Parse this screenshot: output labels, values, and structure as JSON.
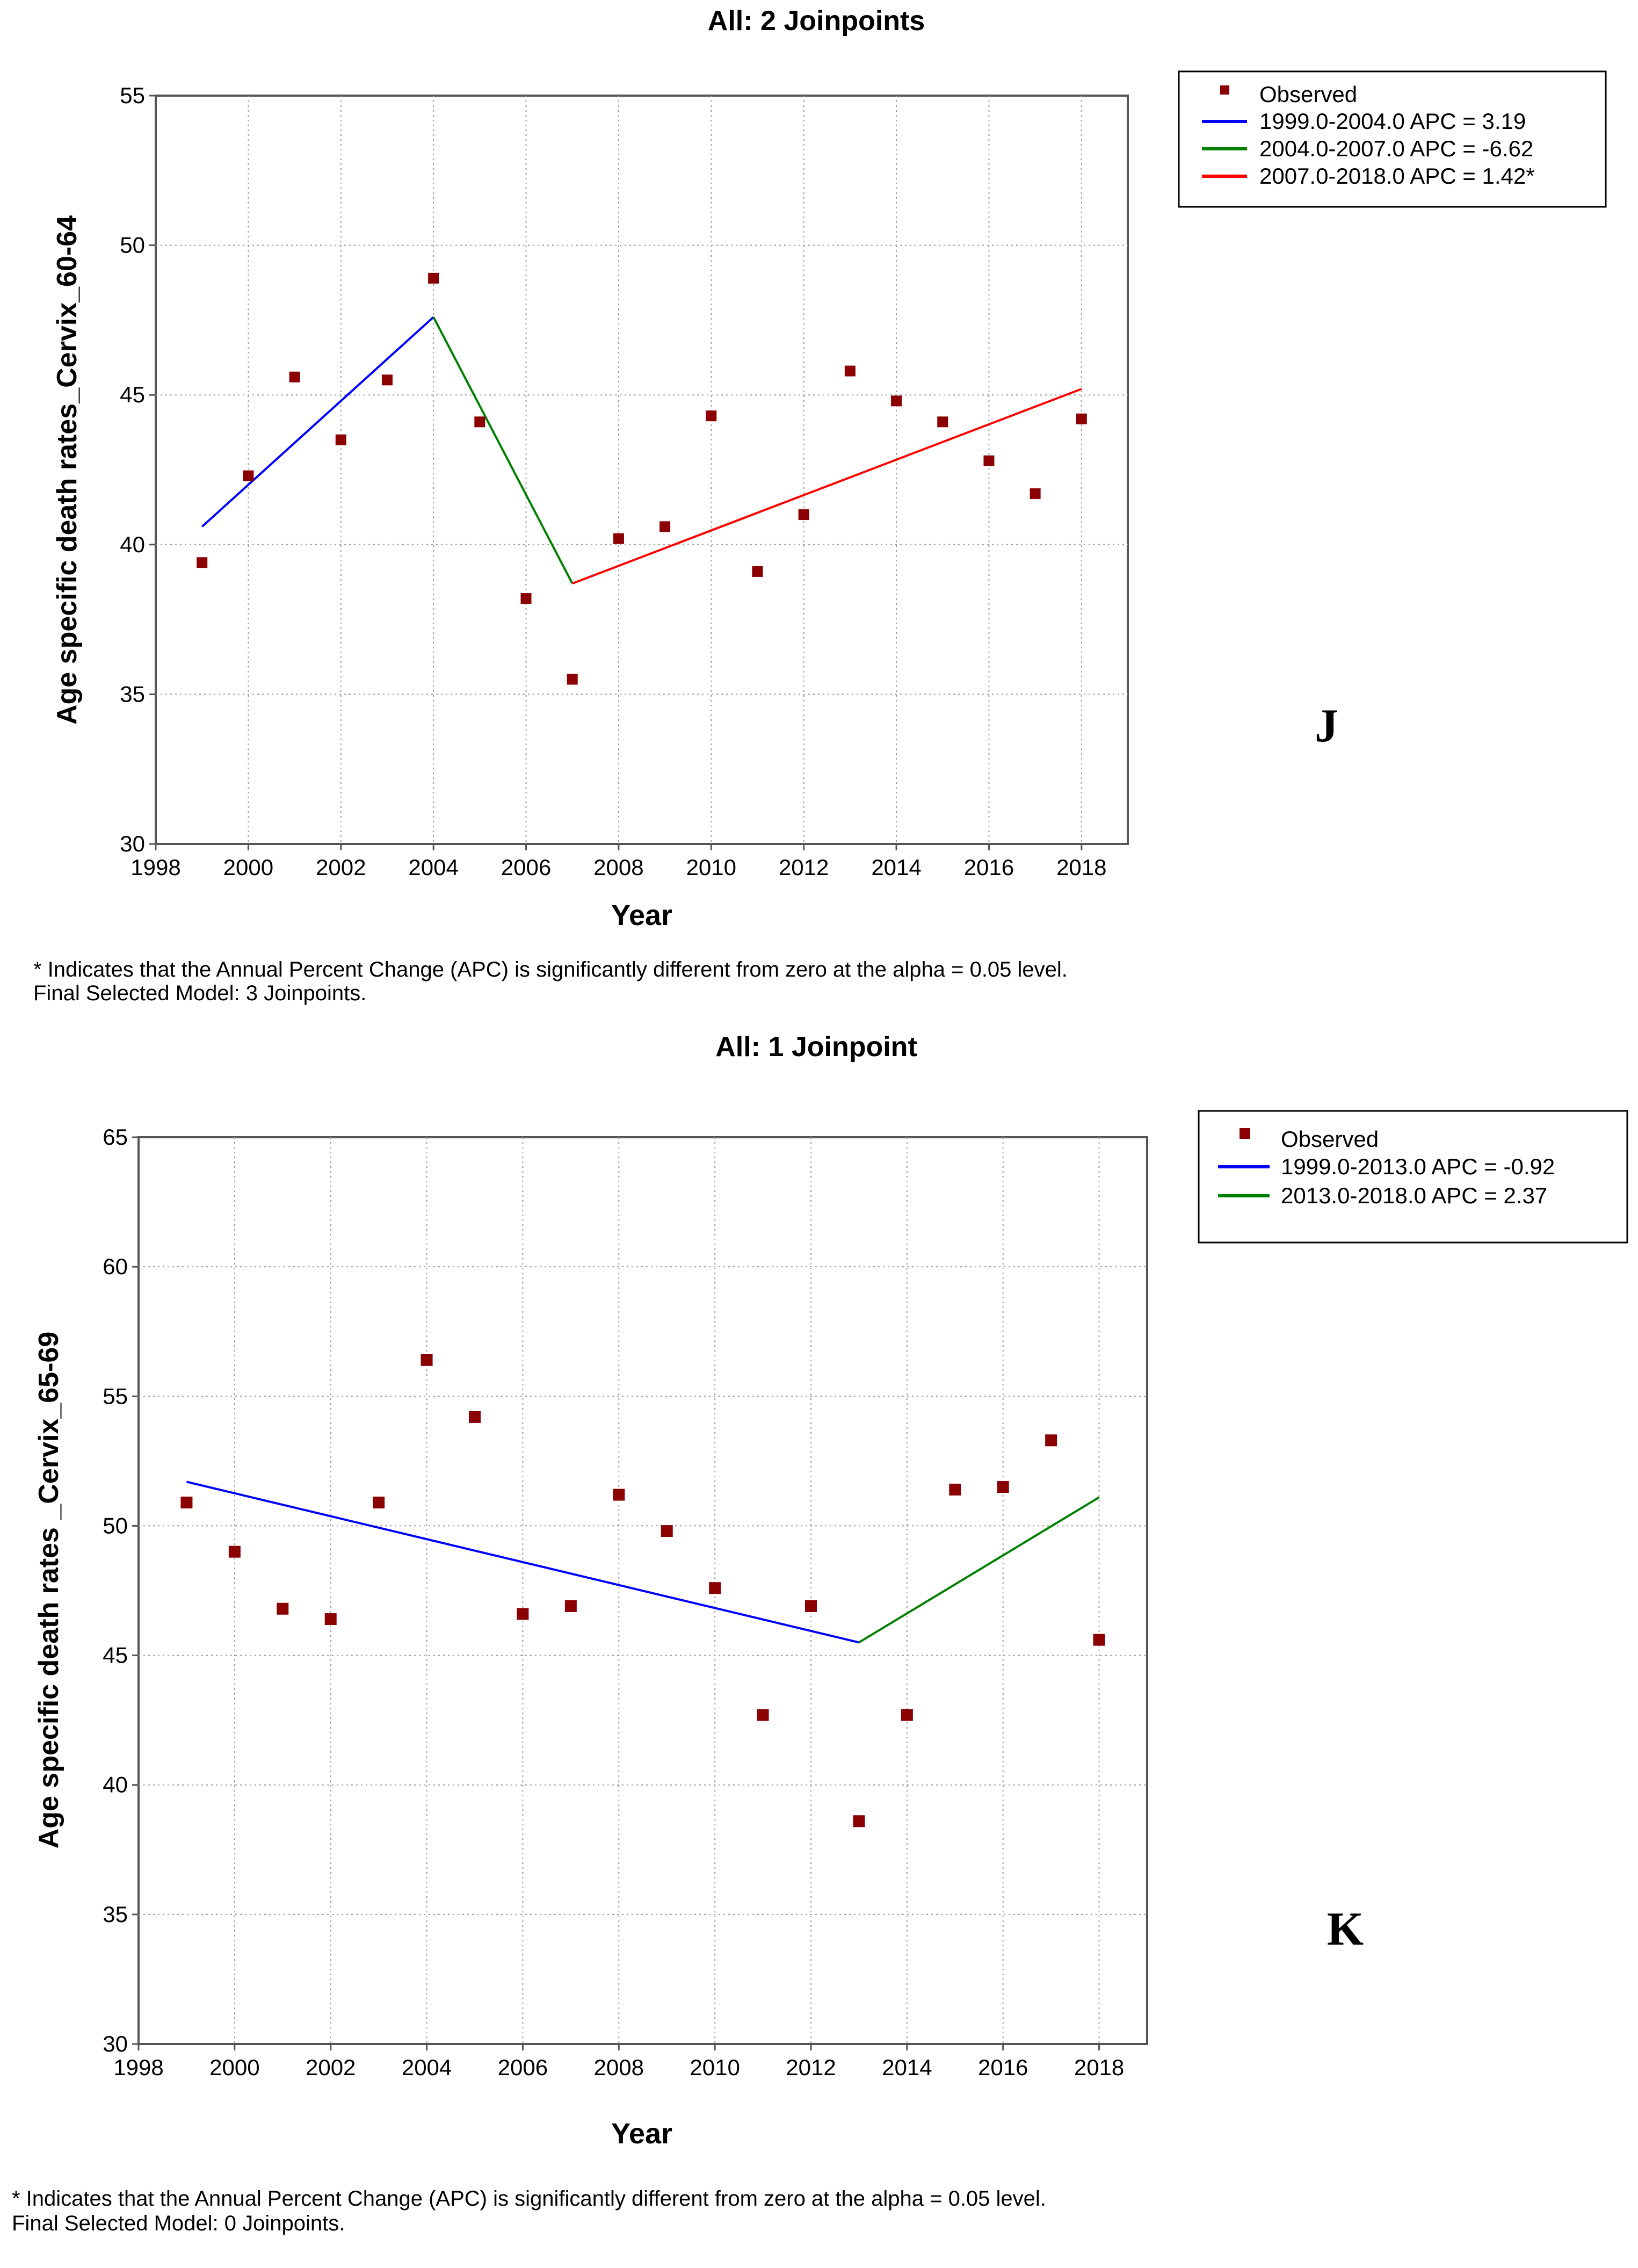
{
  "chart_data": [
    {
      "type": "line",
      "title": "All: 2 Joinpoints",
      "xlabel": "Year",
      "ylabel": "Age specific death rates_Cervix_60-64",
      "xlim": [
        1998,
        2019
      ],
      "ylim": [
        30,
        55
      ],
      "x_ticks": [
        "1998",
        "2000",
        "2002",
        "2004",
        "2006",
        "2008",
        "2010",
        "2012",
        "2014",
        "2016",
        "2018"
      ],
      "y_ticks": [
        "30",
        "35",
        "40",
        "45",
        "50",
        "55"
      ],
      "grid": true,
      "legend_position": "top-right, outside plot",
      "observed": {
        "name": "Observed",
        "color": "#8B0000",
        "x": [
          1999,
          2000,
          2001,
          2002,
          2003,
          2004,
          2005,
          2006,
          2007,
          2008,
          2009,
          2010,
          2011,
          2012,
          2013,
          2014,
          2015,
          2016,
          2017,
          2018
        ],
        "y": [
          39.4,
          42.3,
          45.6,
          43.5,
          45.5,
          48.9,
          44.1,
          38.2,
          35.5,
          40.2,
          40.6,
          44.3,
          39.1,
          41.0,
          45.8,
          44.8,
          44.1,
          42.8,
          41.7,
          44.2
        ]
      },
      "series": [
        {
          "name": "1999.0-2004.0 APC  =  3.19",
          "color": "#0000FF",
          "x": [
            1999,
            2004
          ],
          "y": [
            40.6,
            47.6
          ]
        },
        {
          "name": "2004.0-2007.0 APC  = -6.62",
          "color": "#008000",
          "x": [
            2004,
            2007
          ],
          "y": [
            47.6,
            38.7
          ]
        },
        {
          "name": "2007.0-2018.0 APC  =  1.42*",
          "color": "#FF0000",
          "x": [
            2007,
            2018
          ],
          "y": [
            38.7,
            45.2
          ]
        }
      ],
      "panel_letter": "J",
      "footnote_1": "* Indicates that the Annual Percent Change (APC) is significantly different from zero at the alpha = 0.05 level.",
      "footnote_2": "Final Selected Model: 3 Joinpoints."
    },
    {
      "type": "line",
      "title": "All: 1 Joinpoint",
      "xlabel": "Year",
      "ylabel": "Age specific death rates _Cervix_65-69",
      "xlim": [
        1998,
        2019
      ],
      "ylim": [
        30,
        65
      ],
      "x_ticks": [
        "1998",
        "2000",
        "2002",
        "2004",
        "2006",
        "2008",
        "2010",
        "2012",
        "2014",
        "2016",
        "2018"
      ],
      "y_ticks": [
        "30",
        "35",
        "40",
        "45",
        "50",
        "55",
        "60",
        "65"
      ],
      "grid": true,
      "legend_position": "top-right, outside plot",
      "observed": {
        "name": "Observed",
        "color": "#8B0000",
        "x": [
          1999,
          2000,
          2001,
          2002,
          2003,
          2004,
          2005,
          2006,
          2007,
          2008,
          2009,
          2010,
          2011,
          2012,
          2013,
          2014,
          2015,
          2016,
          2017,
          2018
        ],
        "y": [
          50.9,
          49.0,
          46.8,
          46.4,
          50.9,
          56.4,
          54.2,
          46.6,
          46.9,
          51.2,
          49.8,
          47.6,
          42.7,
          46.9,
          38.6,
          42.7,
          51.4,
          51.5,
          53.3,
          45.6
        ]
      },
      "series": [
        {
          "name": "1999.0-2013.0 APC  = -0.92",
          "color": "#0000FF",
          "x": [
            1999,
            2013
          ],
          "y": [
            51.7,
            45.5
          ]
        },
        {
          "name": "2013.0-2018.0 APC  =  2.37",
          "color": "#008000",
          "x": [
            2013,
            2018
          ],
          "y": [
            45.5,
            51.1
          ]
        }
      ],
      "panel_letter": "K",
      "footnote_1": "* Indicates that the Annual Percent Change (APC) is significantly different from zero at the alpha = 0.05 level.",
      "footnote_2": "Final Selected Model: 0 Joinpoints."
    }
  ]
}
